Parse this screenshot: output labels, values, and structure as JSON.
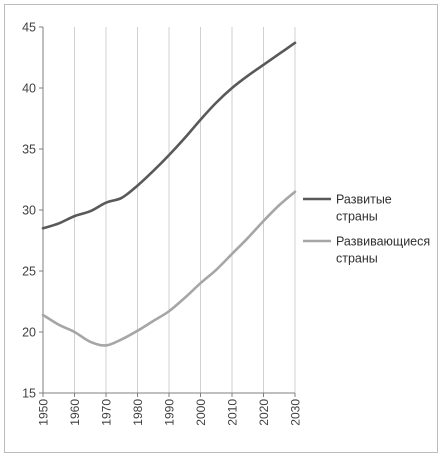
{
  "chart_data": {
    "type": "line",
    "title": "",
    "xlabel": "",
    "ylabel": "",
    "x": [
      1950,
      1955,
      1960,
      1965,
      1970,
      1975,
      1980,
      1985,
      1990,
      1995,
      2000,
      2005,
      2010,
      2015,
      2020,
      2025,
      2030
    ],
    "xticks": [
      "1950",
      "1960",
      "1970",
      "1980",
      "1990",
      "2000",
      "2010",
      "2020",
      "2030"
    ],
    "ylim": [
      15,
      45
    ],
    "yticks": [
      "15",
      "20",
      "25",
      "30",
      "35",
      "40",
      "45"
    ],
    "grid": "vertical",
    "legend_position": "right",
    "series": [
      {
        "name": "Развитые страны",
        "name_lines": [
          "Развитые",
          "страны"
        ],
        "color": "#595959",
        "values": [
          28.5,
          28.9,
          29.5,
          29.9,
          30.6,
          31.0,
          32.0,
          33.2,
          34.5,
          35.9,
          37.4,
          38.8,
          40.0,
          41.0,
          41.9,
          42.8,
          43.7
        ]
      },
      {
        "name": "Развивающиеся страны",
        "name_lines": [
          "Развивающиеся",
          "страны"
        ],
        "color": "#a6a6a6",
        "values": [
          21.4,
          20.6,
          20.0,
          19.2,
          18.9,
          19.4,
          20.1,
          20.9,
          21.7,
          22.8,
          24.0,
          25.1,
          26.4,
          27.7,
          29.1,
          30.4,
          31.5
        ]
      }
    ]
  }
}
